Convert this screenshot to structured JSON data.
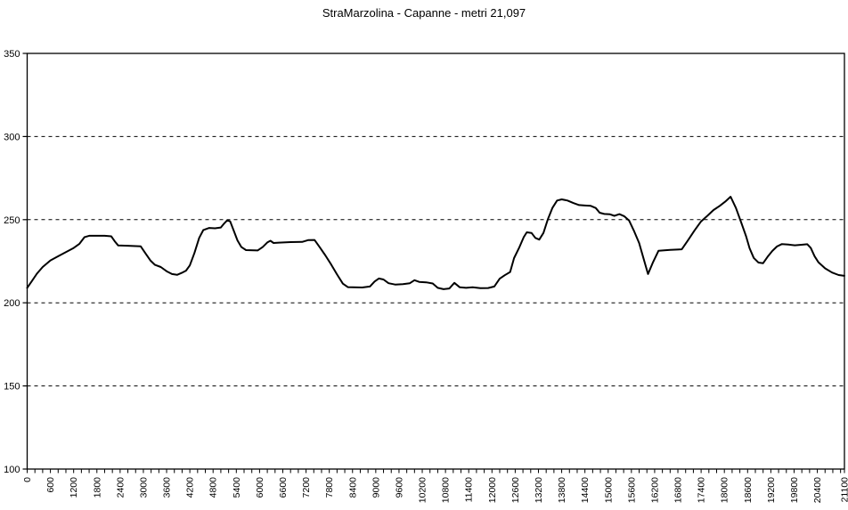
{
  "title": "StraMarzolina - Capanne - metri 21,097",
  "chart_data": {
    "type": "line",
    "title": "StraMarzolina - Capanne - metri 21,097",
    "xlabel": "",
    "ylabel": "",
    "xlim": [
      0,
      21100
    ],
    "ylim": [
      100,
      350
    ],
    "y_ticks": [
      350,
      300,
      250,
      200,
      150,
      100
    ],
    "y_gridlines": [
      300,
      250,
      200,
      150
    ],
    "grid_style": "dashed",
    "legend_position": "none",
    "line_color": "#000000",
    "grid_color": "#000000",
    "axis_color": "#000000",
    "background_color": "#ffffff",
    "x_label_ticks": [
      0,
      600,
      1200,
      1800,
      2400,
      3000,
      3600,
      4200,
      4800,
      5400,
      6000,
      6600,
      7200,
      7800,
      8400,
      9000,
      9600,
      10200,
      10800,
      11400,
      12000,
      12600,
      13200,
      13800,
      14400,
      15000,
      15600,
      16200,
      16800,
      17400,
      18000,
      18600,
      19200,
      19800,
      20400,
      21100
    ],
    "x_minor_tick_step": 200,
    "series": [
      {
        "points": [
          [
            0,
            209
          ],
          [
            120,
            213
          ],
          [
            250,
            217.5
          ],
          [
            400,
            221.5
          ],
          [
            600,
            225.5
          ],
          [
            800,
            228
          ],
          [
            1000,
            230.5
          ],
          [
            1200,
            233
          ],
          [
            1350,
            235.5
          ],
          [
            1480,
            239.5
          ],
          [
            1600,
            240.3
          ],
          [
            2000,
            240.3
          ],
          [
            2170,
            240
          ],
          [
            2260,
            237
          ],
          [
            2350,
            234.5
          ],
          [
            2600,
            234.3
          ],
          [
            2930,
            234
          ],
          [
            3060,
            229.5
          ],
          [
            3180,
            225.5
          ],
          [
            3300,
            222.8
          ],
          [
            3450,
            221.5
          ],
          [
            3600,
            219
          ],
          [
            3740,
            217.3
          ],
          [
            3870,
            216.8
          ],
          [
            3990,
            218
          ],
          [
            4100,
            219.3
          ],
          [
            4200,
            222.5
          ],
          [
            4320,
            230
          ],
          [
            4440,
            239
          ],
          [
            4550,
            243.8
          ],
          [
            4700,
            245
          ],
          [
            4850,
            244.8
          ],
          [
            5000,
            245.3
          ],
          [
            5090,
            247.8
          ],
          [
            5160,
            249.5
          ],
          [
            5240,
            249
          ],
          [
            5330,
            243.5
          ],
          [
            5430,
            237.5
          ],
          [
            5530,
            233.5
          ],
          [
            5650,
            231.7
          ],
          [
            5950,
            231.5
          ],
          [
            6080,
            233.5
          ],
          [
            6200,
            236.3
          ],
          [
            6280,
            237.3
          ],
          [
            6360,
            236
          ],
          [
            6500,
            236.2
          ],
          [
            6800,
            236.5
          ],
          [
            7100,
            236.6
          ],
          [
            7250,
            237.7
          ],
          [
            7420,
            237.8
          ],
          [
            7550,
            233.5
          ],
          [
            7700,
            228.5
          ],
          [
            7850,
            223
          ],
          [
            8000,
            217
          ],
          [
            8150,
            211.5
          ],
          [
            8280,
            209.4
          ],
          [
            8650,
            209.2
          ],
          [
            8850,
            209.8
          ],
          [
            8970,
            212.8
          ],
          [
            9080,
            214.6
          ],
          [
            9200,
            214
          ],
          [
            9330,
            211.8
          ],
          [
            9500,
            211
          ],
          [
            9700,
            211.2
          ],
          [
            9880,
            211.8
          ],
          [
            10000,
            213.6
          ],
          [
            10120,
            212.6
          ],
          [
            10300,
            212.3
          ],
          [
            10470,
            211.6
          ],
          [
            10600,
            209
          ],
          [
            10750,
            208.2
          ],
          [
            10900,
            208.6
          ],
          [
            11030,
            212
          ],
          [
            11170,
            209.3
          ],
          [
            11330,
            209
          ],
          [
            11500,
            209.3
          ],
          [
            11700,
            208.8
          ],
          [
            11900,
            208.9
          ],
          [
            12060,
            209.8
          ],
          [
            12200,
            214.5
          ],
          [
            12330,
            216.6
          ],
          [
            12470,
            218.5
          ],
          [
            12570,
            226.9
          ],
          [
            12700,
            233
          ],
          [
            12820,
            239.5
          ],
          [
            12900,
            242.4
          ],
          [
            13020,
            242
          ],
          [
            13120,
            239
          ],
          [
            13220,
            238
          ],
          [
            13330,
            242
          ],
          [
            13440,
            250
          ],
          [
            13560,
            257
          ],
          [
            13680,
            261.5
          ],
          [
            13800,
            262.2
          ],
          [
            13950,
            261.5
          ],
          [
            14100,
            260
          ],
          [
            14250,
            258.8
          ],
          [
            14400,
            258.5
          ],
          [
            14550,
            258.3
          ],
          [
            14680,
            257
          ],
          [
            14780,
            254.2
          ],
          [
            14900,
            253.4
          ],
          [
            15050,
            253.2
          ],
          [
            15160,
            252.3
          ],
          [
            15290,
            253.3
          ],
          [
            15420,
            252
          ],
          [
            15540,
            249.5
          ],
          [
            15660,
            243.5
          ],
          [
            15800,
            236
          ],
          [
            15910,
            227
          ],
          [
            16030,
            217.3
          ],
          [
            16160,
            224.5
          ],
          [
            16300,
            231.3
          ],
          [
            16600,
            231.8
          ],
          [
            16900,
            232.2
          ],
          [
            17060,
            237.5
          ],
          [
            17230,
            243.5
          ],
          [
            17400,
            249
          ],
          [
            17560,
            252.3
          ],
          [
            17720,
            255.8
          ],
          [
            17880,
            258.3
          ],
          [
            18020,
            260.8
          ],
          [
            18160,
            263.8
          ],
          [
            18300,
            257
          ],
          [
            18440,
            248
          ],
          [
            18560,
            240
          ],
          [
            18650,
            232.8
          ],
          [
            18760,
            227
          ],
          [
            18880,
            224.2
          ],
          [
            19000,
            223.8
          ],
          [
            19120,
            227.8
          ],
          [
            19240,
            231.2
          ],
          [
            19360,
            233.9
          ],
          [
            19480,
            235.3
          ],
          [
            19650,
            235
          ],
          [
            19820,
            234.6
          ],
          [
            19990,
            234.9
          ],
          [
            20140,
            235.2
          ],
          [
            20230,
            233
          ],
          [
            20330,
            228
          ],
          [
            20430,
            224.3
          ],
          [
            20600,
            220.7
          ],
          [
            20780,
            218.2
          ],
          [
            20950,
            216.7
          ],
          [
            21097,
            216.2
          ]
        ]
      }
    ]
  }
}
